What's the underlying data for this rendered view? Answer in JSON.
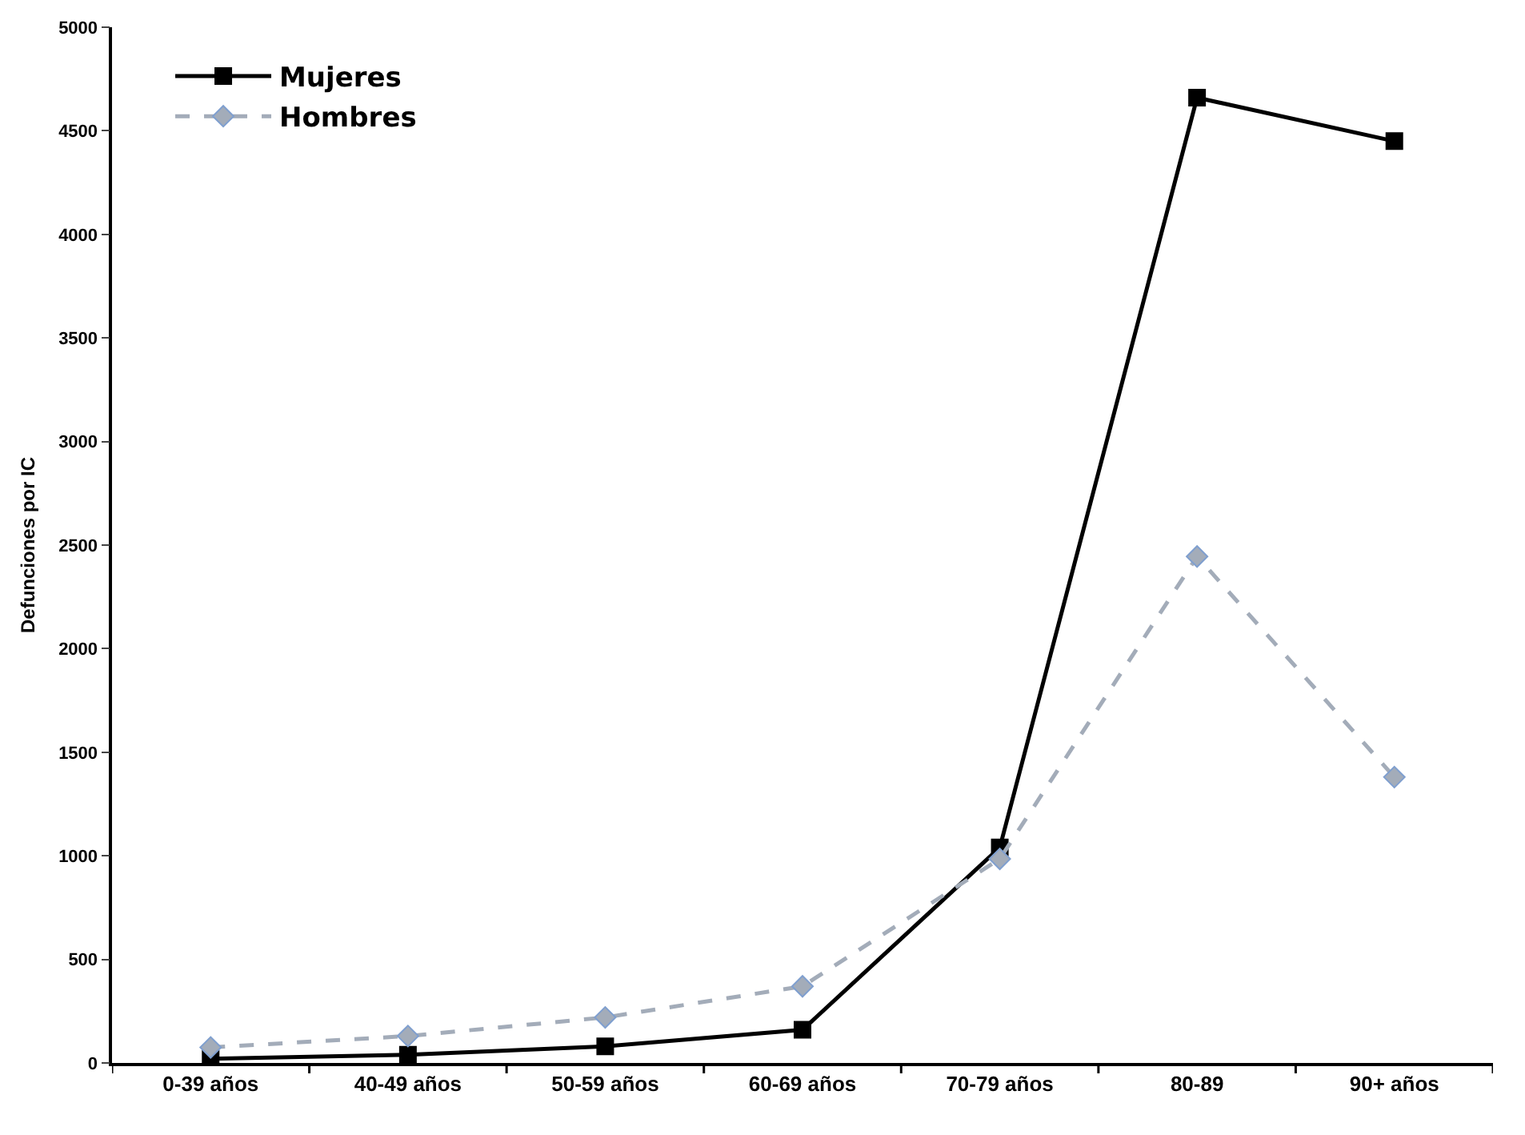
{
  "chart_data": {
    "type": "line",
    "ylabel": "Defunciones por IC",
    "categories": [
      "0-39 años",
      "40-49 años",
      "50-59 años",
      "60-69 años",
      "70-79 años",
      "80-89",
      "90+ años"
    ],
    "series": [
      {
        "name": "Mujeres",
        "color": "#000000",
        "marker": "square",
        "line_style": "solid",
        "values": [
          20,
          40,
          80,
          160,
          1040,
          4660,
          4450
        ]
      },
      {
        "name": "Hombres",
        "color": "#a3acb9",
        "marker": "diamond",
        "line_style": "dashed",
        "values": [
          75,
          130,
          220,
          370,
          985,
          2445,
          1380
        ]
      }
    ],
    "ylim": [
      0,
      5000
    ],
    "yticks": [
      0,
      500,
      1000,
      1500,
      2000,
      2500,
      3000,
      3500,
      4000,
      4500,
      5000
    ],
    "grid": false,
    "legend": "top left"
  }
}
